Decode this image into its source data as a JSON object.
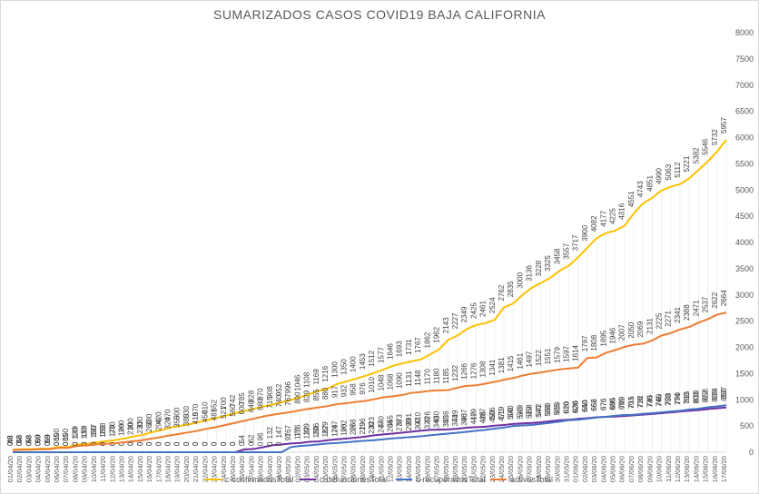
{
  "chart_data": {
    "type": "line",
    "title": "SUMARIZADOS CASOS  COVID19 BAJA CALIFORNIA",
    "xlabel": "",
    "ylabel": "",
    "ylim": [
      0,
      8000
    ],
    "yticks": [
      0,
      500,
      1000,
      1500,
      2000,
      2500,
      3000,
      3500,
      4000,
      4500,
      5000,
      5500,
      6000,
      6500,
      7000,
      7500,
      8000
    ],
    "grid": false,
    "legend": "bottom",
    "x": [
      "01/04/20",
      "02/04/20",
      "03/04/20",
      "04/04/20",
      "05/04/20",
      "06/04/20",
      "07/04/20",
      "08/04/20",
      "09/04/20",
      "10/04/20",
      "11/04/20",
      "12/04/20",
      "13/04/20",
      "14/04/20",
      "15/04/20",
      "16/04/20",
      "17/04/20",
      "18/04/20",
      "19/04/20",
      "20/04/20",
      "21/04/20",
      "22/04/20",
      "23/04/20",
      "24/04/20",
      "25/04/20",
      "26/04/20",
      "27/04/20",
      "28/04/20",
      "29/04/20",
      "30/04/20",
      "01/05/20",
      "02/05/20",
      "03/05/20",
      "04/05/20",
      "05/05/20",
      "06/05/20",
      "07/05/20",
      "08/05/20",
      "09/05/20",
      "10/05/20",
      "11/05/20",
      "12/05/20",
      "13/05/20",
      "14/05/20",
      "15/05/20",
      "16/05/20",
      "17/05/20",
      "18/05/20",
      "19/05/20",
      "20/05/20",
      "21/05/20",
      "22/05/20",
      "23/05/20",
      "24/05/20",
      "25/05/20",
      "26/05/20",
      "27/05/20",
      "28/05/20",
      "29/05/20",
      "30/05/20",
      "31/05/20",
      "01/06/20",
      "02/06/20",
      "03/06/20",
      "04/06/20",
      "05/06/20",
      "06/06/20",
      "07/06/20",
      "08/06/20",
      "09/06/20",
      "10/06/20",
      "11/06/20",
      "12/06/20",
      "13/06/20",
      "14/06/20",
      "15/06/20",
      "16/06/20",
      "17/06/20"
    ],
    "series": [
      {
        "name": "c-confirmadosTotal",
        "color": "#FFC000",
        "values": [
          48,
          58,
          58,
          69,
          69,
          100,
          100,
          149,
          159,
          187,
          208,
          230,
          260,
          300,
          330,
          380,
          420,
          470,
          500,
          530,
          570,
          610,
          652,
          700,
          742,
          785,
          828,
          870,
          908,
          952,
          996,
          1046,
          1108,
          1169,
          1216,
          1300,
          1350,
          1400,
          1453,
          1512,
          1577,
          1646,
          1693,
          1731,
          1767,
          1862,
          1962,
          2143,
          2227,
          2349,
          2425,
          2461,
          2524,
          2762,
          2835,
          3000,
          3136,
          3228,
          3325,
          3458,
          3557,
          3717,
          3900,
          4082,
          4177,
          4225,
          4316,
          4551,
          4743,
          4851,
          4990,
          5063,
          5112,
          5221,
          5382,
          5546,
          5732,
          5957
        ]
      },
      {
        "name": "c-defuncionesTotal",
        "color": "#7030A0",
        "values": [
          0,
          0,
          0,
          0,
          0,
          0,
          0,
          0,
          0,
          0,
          0,
          0,
          0,
          0,
          0,
          0,
          0,
          0,
          0,
          0,
          0,
          0,
          0,
          0,
          0,
          54,
          62,
          96,
          132,
          147,
          167,
          176,
          199,
          206,
          229,
          247,
          262,
          278,
          296,
          323,
          340,
          355,
          373,
          391,
          410,
          426,
          430,
          436,
          449,
          467,
          479,
          487,
          506,
          519,
          540,
          549,
          558,
          572,
          590,
          610,
          620,
          636,
          650,
          666,
          676,
          680,
          691,
          703,
          716,
          730,
          745,
          760,
          774,
          790,
          803,
          822,
          838,
          852
        ]
      },
      {
        "name": "c-recuperadosTotal",
        "color": "#4472C4",
        "values": [
          0,
          0,
          0,
          0,
          0,
          0,
          0,
          0,
          0,
          0,
          0,
          0,
          0,
          0,
          0,
          0,
          0,
          0,
          0,
          0,
          0,
          0,
          0,
          0,
          0,
          0,
          0,
          0,
          0,
          0,
          97,
          120,
          132,
          150,
          167,
          176,
          190,
          206,
          219,
          230,
          247,
          264,
          278,
          290,
          302,
          323,
          340,
          355,
          373,
          390,
          410,
          426,
          450,
          470,
          500,
          510,
          519,
          540,
          560,
          585,
          610,
          620,
          640,
          662,
          676,
          695,
          709,
          715,
          732,
          745,
          760,
          778,
          790,
          815,
          830,
          858,
          874,
          897
        ]
      },
      {
        "name": "activosTotal",
        "color": "#ED7D31",
        "values": [
          40,
          48,
          48,
          59,
          59,
          85,
          85,
          120,
          130,
          150,
          160,
          170,
          190,
          210,
          230,
          260,
          290,
          320,
          350,
          380,
          410,
          450,
          481,
          521,
          560,
          600,
          640,
          680,
          715,
          740,
          767,
          800,
          829,
          855,
          880,
          917,
          932,
          958,
          976,
          1010,
          1048,
          1068,
          1090,
          1131,
          1148,
          1170,
          1180,
          1185,
          1232,
          1266,
          1276,
          1308,
          1341,
          1381,
          1415,
          1461,
          1497,
          1522,
          1551,
          1579,
          1597,
          1614,
          1797,
          1808,
          1895,
          1946,
          2007,
          2050,
          2069,
          2131,
          2225,
          2271,
          2341,
          2388,
          2471,
          2537,
          2622,
          2664
        ]
      }
    ]
  }
}
